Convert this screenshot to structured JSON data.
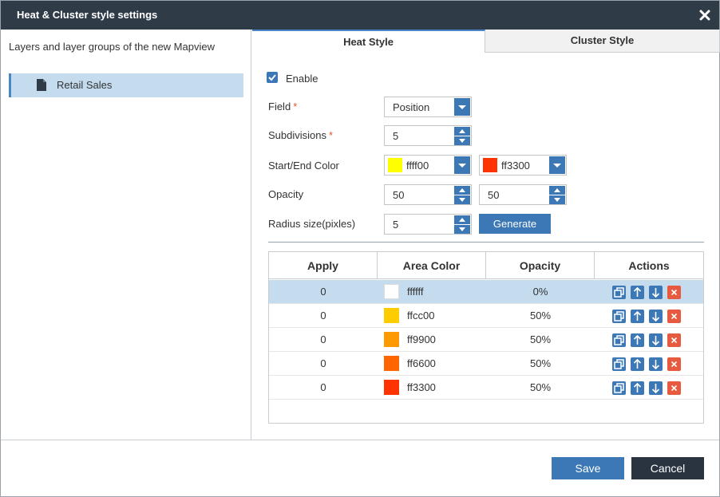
{
  "dialog": {
    "title": "Heat & Cluster style settings",
    "close_icon": "close-icon"
  },
  "left": {
    "heading": "Layers and layer groups of the new Mapview",
    "layer": {
      "label": "Retail Sales",
      "icon": "document-icon"
    }
  },
  "tabs": [
    {
      "label": "Heat Style",
      "active": true
    },
    {
      "label": "Cluster Style",
      "active": false
    }
  ],
  "form": {
    "enable_label": "Enable",
    "enable_checked": true,
    "field_label": "Field",
    "field_value": "Position",
    "subdivisions_label": "Subdivisions",
    "subdivisions_value": "5",
    "required_mark": "*",
    "start_end_label": "Start/End Color",
    "start_color_text": "ffff00",
    "start_color": "#ffff00",
    "end_color_text": "ff3300",
    "end_color": "#ff3300",
    "opacity_label": "Opacity",
    "opacity_start": "50",
    "opacity_end": "50",
    "radius_label": "Radius size(pixles)",
    "radius_value": "5",
    "generate_label": "Generate"
  },
  "table": {
    "headers": [
      "Apply",
      "Area Color",
      "Opacity",
      "Actions"
    ],
    "rows": [
      {
        "apply": "0",
        "color": "#ffffff",
        "color_text": "ffffff",
        "opacity": "0%",
        "selected": true
      },
      {
        "apply": "0",
        "color": "#ffcc00",
        "color_text": "ffcc00",
        "opacity": "50%",
        "selected": false
      },
      {
        "apply": "0",
        "color": "#ff9900",
        "color_text": "ff9900",
        "opacity": "50%",
        "selected": false
      },
      {
        "apply": "0",
        "color": "#ff6600",
        "color_text": "ff6600",
        "opacity": "50%",
        "selected": false
      },
      {
        "apply": "0",
        "color": "#ff3300",
        "color_text": "ff3300",
        "opacity": "50%",
        "selected": false
      }
    ],
    "action_icons": [
      "copy-icon",
      "arrow-up-icon",
      "arrow-down-icon",
      "delete-icon"
    ]
  },
  "footer": {
    "save_label": "Save",
    "cancel_label": "Cancel"
  },
  "colors": {
    "titlebar": "#2f3c48",
    "accent": "#3c78b5",
    "selected_row": "#c5dcef",
    "delete": "#e65a3f",
    "cancel": "#2a3440"
  }
}
